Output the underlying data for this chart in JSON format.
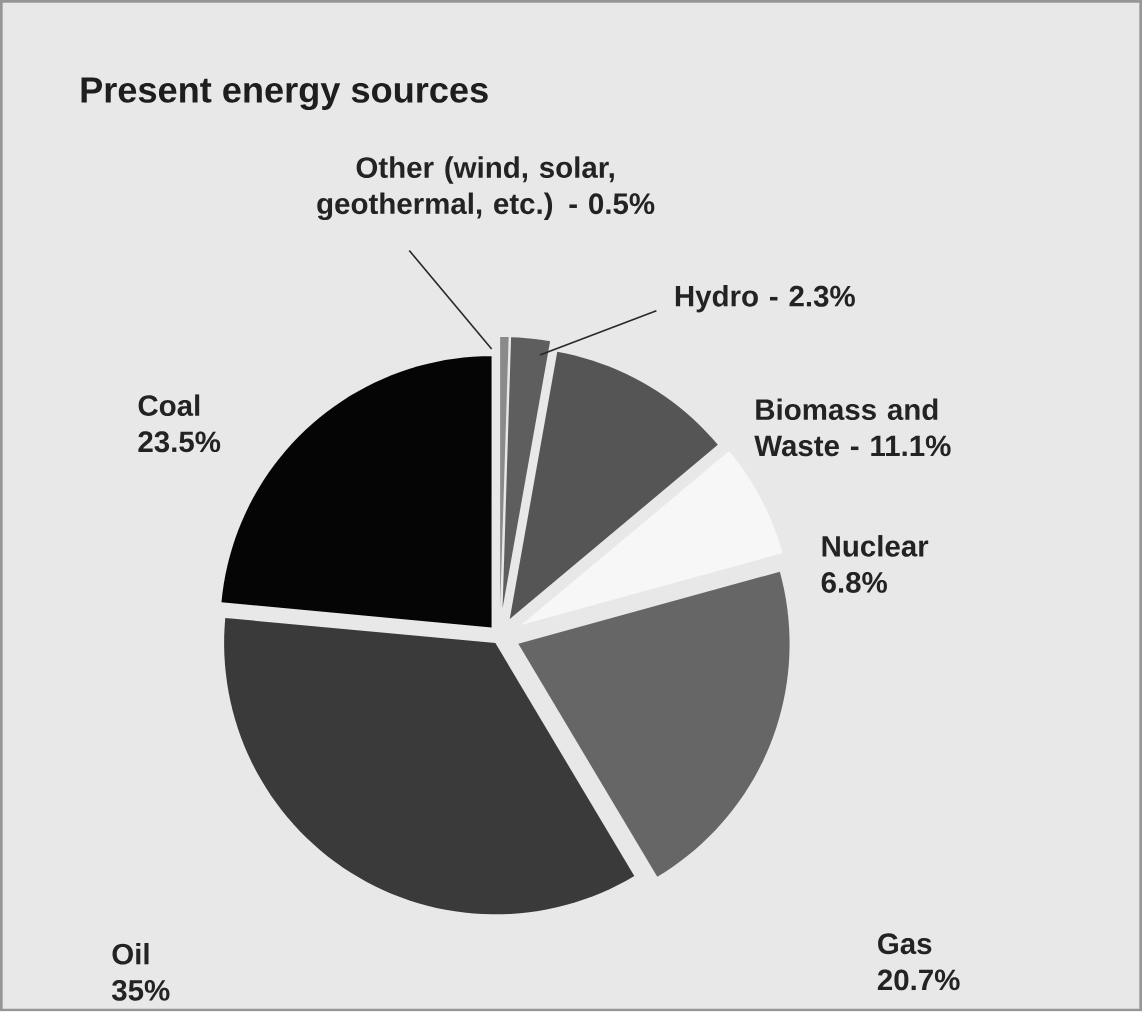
{
  "chart_data": {
    "type": "pie",
    "title": "Present energy sources",
    "categories": [
      "Other (wind, solar, geothermal, etc.) -",
      "Hydro -",
      "Biomass and Waste -",
      "Nuclear",
      "Gas",
      "Oil",
      "Coal"
    ],
    "values": [
      0.5,
      2.3,
      11.1,
      6.8,
      20.7,
      35,
      23.5
    ],
    "value_labels": [
      "0.5%",
      "2.3%",
      "11.1%",
      "6.8%",
      "20.7%",
      "35%",
      "23.5%"
    ],
    "colors": [
      "#8a8a8a",
      "#5e5e5e",
      "#555555",
      "#f7f7f7",
      "#666666",
      "#3a3a3a",
      "#050505"
    ]
  }
}
